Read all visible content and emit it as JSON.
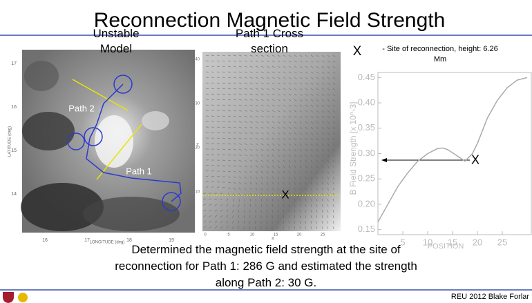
{
  "title": "Reconnection Magnetic Field Strength",
  "left_panel": {
    "title": "Unstable Model",
    "xlabel": "LONGITUDE (deg)",
    "ylabel": "LATITUDE (deg)",
    "xticks": [
      "16",
      "17",
      "18",
      "19"
    ],
    "yticks": [
      "17",
      "16",
      "15",
      "14"
    ],
    "labels": [
      "Path 2",
      "Path 1"
    ]
  },
  "middle_panel": {
    "title": "Path 1 Cross section",
    "xlabel": "X",
    "ylabel": "Z",
    "xticks": [
      "0",
      "5",
      "10",
      "15",
      "20",
      "25"
    ],
    "yticks": [
      "40",
      "30",
      "20",
      "10"
    ],
    "marker": "X"
  },
  "legend": {
    "symbol": "X",
    "text": "- Site of reconnection, height: 6.26 Mm"
  },
  "chart_data": {
    "type": "line",
    "xlabel": "POSITION",
    "ylabel": "B Field Strength [x 10^-3]",
    "x": [
      0,
      2,
      4,
      6,
      8,
      10,
      12,
      13,
      14,
      16,
      17.5,
      19,
      20,
      22,
      24,
      26,
      28,
      30
    ],
    "values": [
      0.165,
      0.2,
      0.235,
      0.262,
      0.285,
      0.3,
      0.31,
      0.311,
      0.308,
      0.295,
      0.285,
      0.3,
      0.32,
      0.37,
      0.405,
      0.43,
      0.445,
      0.45
    ],
    "color": "#aaaaaa",
    "xlim": [
      0,
      30
    ],
    "ylim": [
      0.14,
      0.46
    ],
    "xticks": [
      5,
      10,
      15,
      20,
      25
    ],
    "yticks": [
      0.15,
      {
        "value": 0.2,
        "label": "0.20"
      },
      0.25,
      {
        "value": 0.3,
        "label": "0.30"
      },
      0.35,
      {
        "value": 0.4,
        "label": "0.40"
      },
      0.45
    ],
    "annotation": "X",
    "annotation_value": 0.286
  },
  "caption": "Determined the magnetic field strength at the site of reconnection for Path 1: 286 G and estimated the strength along Path 2: 30 G.",
  "footer": "REU 2012 Blake Forlar"
}
